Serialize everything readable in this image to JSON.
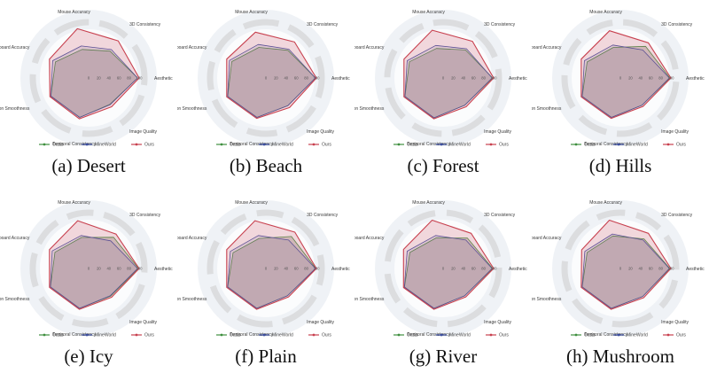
{
  "page": {
    "background": "#ffffff",
    "figure_type": "radar-chart-grid"
  },
  "legend": {
    "items": [
      {
        "label": "Oasis",
        "color": "#3f8f3f"
      },
      {
        "label": "MineWorld",
        "color": "#3b4ea0"
      },
      {
        "label": "Ours",
        "color": "#c8414f"
      }
    ]
  },
  "style": {
    "ring_color": "#dcdddf",
    "outer_disc_color": "#eff2f6",
    "inner_disc_color": "#fbfcfd",
    "axis_label_color": "#3a3a3a",
    "tick_label_color": "#555555",
    "legend_text_color": "#444444"
  },
  "chart_data": [
    {
      "type": "radar",
      "title": "(a) Desert",
      "axes": [
        "Aesthetic",
        "3D Consistency",
        "Mouse Accuracy",
        "Keyboard Accuracy",
        "Motion Smoothness",
        "Temporal Consistency",
        "Image Quality"
      ],
      "ticks": [
        0,
        20,
        40,
        60,
        80,
        100
      ],
      "rlim": [
        0,
        100
      ],
      "series": [
        {
          "name": "Oasis",
          "color": "#3f8f3f",
          "fill": "rgba(120,120,108,0.32)",
          "values": [
            97,
            68,
            58,
            73,
            83,
            80,
            67
          ]
        },
        {
          "name": "MineWorld",
          "color": "#3b4ea0",
          "fill": "rgba(95,100,160,0.16)",
          "values": [
            97,
            72,
            65,
            79,
            83,
            80,
            68
          ]
        },
        {
          "name": "Ours",
          "color": "#c8414f",
          "fill": "rgba(205,85,105,0.22)",
          "values": [
            100,
            94,
            100,
            86,
            85,
            83,
            73
          ]
        }
      ]
    },
    {
      "type": "radar",
      "title": "(b) Beach",
      "axes": [
        "Aesthetic",
        "3D Consistency",
        "Mouse Accuracy",
        "Keyboard Accuracy",
        "Motion Smoothness",
        "Temporal Consistency",
        "Image Quality"
      ],
      "ticks": [
        0,
        20,
        40,
        60,
        80,
        100
      ],
      "rlim": [
        0,
        100
      ],
      "series": [
        {
          "name": "Oasis",
          "color": "#3f8f3f",
          "fill": "rgba(120,120,108,0.32)",
          "values": [
            98,
            70,
            62,
            75,
            84,
            80,
            70
          ]
        },
        {
          "name": "MineWorld",
          "color": "#3b4ea0",
          "fill": "rgba(95,100,160,0.16)",
          "values": [
            98,
            73,
            68,
            80,
            84,
            80,
            70
          ]
        },
        {
          "name": "Ours",
          "color": "#c8414f",
          "fill": "rgba(205,85,105,0.22)",
          "values": [
            100,
            91,
            93,
            86,
            86,
            82,
            75
          ]
        }
      ]
    },
    {
      "type": "radar",
      "title": "(c) Forest",
      "axes": [
        "Aesthetic",
        "3D Consistency",
        "Mouse Accuracy",
        "Keyboard Accuracy",
        "Motion Smoothness",
        "Temporal Consistency",
        "Image Quality"
      ],
      "ticks": [
        0,
        20,
        40,
        60,
        80,
        100
      ],
      "rlim": [
        0,
        100
      ],
      "series": [
        {
          "name": "Oasis",
          "color": "#3f8f3f",
          "fill": "rgba(120,120,108,0.32)",
          "values": [
            98,
            71,
            60,
            74,
            84,
            81,
            69
          ]
        },
        {
          "name": "MineWorld",
          "color": "#3b4ea0",
          "fill": "rgba(95,100,160,0.16)",
          "values": [
            97,
            74,
            66,
            79,
            84,
            81,
            69
          ]
        },
        {
          "name": "Ours",
          "color": "#c8414f",
          "fill": "rgba(205,85,105,0.22)",
          "values": [
            100,
            93,
            97,
            86,
            86,
            83,
            73
          ]
        }
      ]
    },
    {
      "type": "radar",
      "title": "(d) Hills",
      "axes": [
        "Aesthetic",
        "3D Consistency",
        "Mouse Accuracy",
        "Keyboard Accuracy",
        "Motion Smoothness",
        "Temporal Consistency",
        "Image Quality"
      ],
      "ticks": [
        0,
        20,
        40,
        60,
        80,
        100
      ],
      "rlim": [
        0,
        100
      ],
      "series": [
        {
          "name": "Oasis",
          "color": "#3f8f3f",
          "fill": "rgba(120,120,108,0.32)",
          "values": [
            98,
            80,
            62,
            73,
            84,
            80,
            69
          ]
        },
        {
          "name": "MineWorld",
          "color": "#3b4ea0",
          "fill": "rgba(95,100,160,0.16)",
          "values": [
            97,
            71,
            67,
            79,
            84,
            80,
            69
          ]
        },
        {
          "name": "Ours",
          "color": "#c8414f",
          "fill": "rgba(205,85,105,0.22)",
          "values": [
            100,
            89,
            96,
            86,
            86,
            82,
            72
          ]
        }
      ]
    },
    {
      "type": "radar",
      "title": "(e) Icy",
      "axes": [
        "Aesthetic",
        "3D Consistency",
        "Mouse Accuracy",
        "Keyboard Accuracy",
        "Motion Smoothness",
        "Temporal Consistency",
        "Image Quality"
      ],
      "ticks": [
        0,
        20,
        40,
        60,
        80,
        100
      ],
      "rlim": [
        0,
        100
      ],
      "series": [
        {
          "name": "Oasis",
          "color": "#3f8f3f",
          "fill": "rgba(120,120,108,0.32)",
          "values": [
            99,
            79,
            63,
            74,
            84,
            81,
            70
          ]
        },
        {
          "name": "MineWorld",
          "color": "#3b4ea0",
          "fill": "rgba(95,100,160,0.16)",
          "values": [
            97,
            70,
            67,
            80,
            84,
            81,
            69
          ]
        },
        {
          "name": "Ours",
          "color": "#c8414f",
          "fill": "rgba(205,85,105,0.22)",
          "values": [
            100,
            87,
            97,
            86,
            86,
            83,
            73
          ]
        }
      ]
    },
    {
      "type": "radar",
      "title": "(f) Plain",
      "axes": [
        "Aesthetic",
        "3D Consistency",
        "Mouse Accuracy",
        "Keyboard Accuracy",
        "Motion Smoothness",
        "Temporal Consistency",
        "Image Quality"
      ],
      "ticks": [
        0,
        20,
        40,
        60,
        80,
        100
      ],
      "rlim": [
        0,
        100
      ],
      "series": [
        {
          "name": "Oasis",
          "color": "#3f8f3f",
          "fill": "rgba(120,120,108,0.32)",
          "values": [
            99,
            81,
            61,
            72,
            84,
            81,
            69
          ]
        },
        {
          "name": "MineWorld",
          "color": "#3b4ea0",
          "fill": "rgba(95,100,160,0.16)",
          "values": [
            98,
            72,
            67,
            78,
            84,
            81,
            69
          ]
        },
        {
          "name": "Ours",
          "color": "#c8414f",
          "fill": "rgba(205,85,105,0.22)",
          "values": [
            100,
            92,
            97,
            86,
            86,
            83,
            72
          ]
        }
      ]
    },
    {
      "type": "radar",
      "title": "(g) River",
      "axes": [
        "Aesthetic",
        "3D Consistency",
        "Mouse Accuracy",
        "Keyboard Accuracy",
        "Motion Smoothness",
        "Temporal Consistency",
        "Image Quality"
      ],
      "ticks": [
        0,
        20,
        40,
        60,
        80,
        100
      ],
      "rlim": [
        0,
        100
      ],
      "series": [
        {
          "name": "Oasis",
          "color": "#3f8f3f",
          "fill": "rgba(120,120,108,0.32)",
          "values": [
            98,
            77,
            62,
            73,
            85,
            81,
            69
          ]
        },
        {
          "name": "MineWorld",
          "color": "#3b4ea0",
          "fill": "rgba(95,100,160,0.16)",
          "values": [
            97,
            72,
            67,
            79,
            85,
            81,
            69
          ]
        },
        {
          "name": "Ours",
          "color": "#c8414f",
          "fill": "rgba(205,85,105,0.22)",
          "values": [
            100,
            89,
            98,
            87,
            87,
            83,
            72
          ]
        }
      ]
    },
    {
      "type": "radar",
      "title": "(h) Mushroom",
      "axes": [
        "Aesthetic",
        "3D Consistency",
        "Mouse Accuracy",
        "Keyboard Accuracy",
        "Motion Smoothness",
        "Temporal Consistency",
        "Image Quality"
      ],
      "ticks": [
        0,
        20,
        40,
        60,
        80,
        100
      ],
      "rlim": [
        0,
        100
      ],
      "series": [
        {
          "name": "Oasis",
          "color": "#3f8f3f",
          "fill": "rgba(120,120,108,0.32)",
          "values": [
            98,
            75,
            66,
            73,
            84,
            81,
            71
          ]
        },
        {
          "name": "MineWorld",
          "color": "#3b4ea0",
          "fill": "rgba(95,100,160,0.16)",
          "values": [
            97,
            72,
            70,
            78,
            84,
            81,
            71
          ]
        },
        {
          "name": "Ours",
          "color": "#c8414f",
          "fill": "rgba(205,85,105,0.22)",
          "values": [
            100,
            89,
            98,
            85,
            86,
            83,
            74
          ]
        }
      ]
    }
  ]
}
